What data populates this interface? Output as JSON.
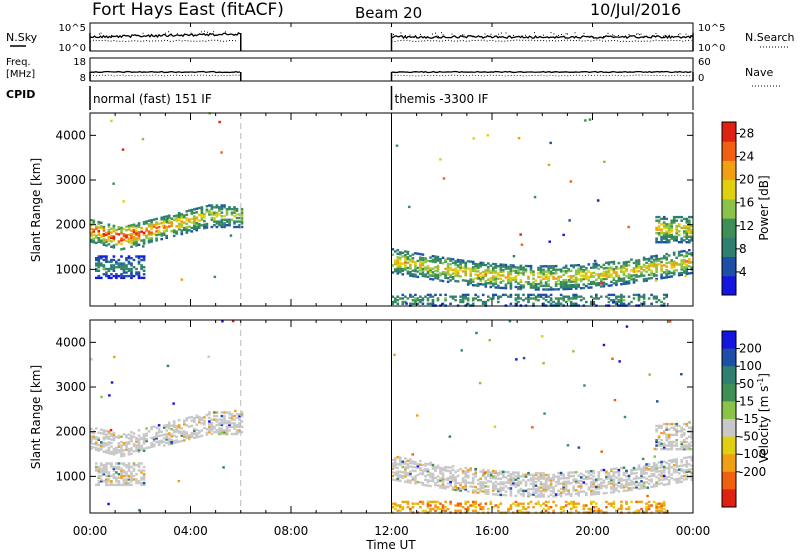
{
  "header": {
    "title": "Fort Hays East (fitACF)",
    "beam": "Beam 20",
    "date": "10/Jul/2016"
  },
  "top_panels": {
    "nsky_label": "N.Sky",
    "nsky_ticks": [
      "10^5",
      "10^0"
    ],
    "nsearch_label": "N.Search",
    "nsearch_ticks": [
      "10^5",
      "10^0"
    ],
    "freq_label_1": "Freq.",
    "freq_label_2": "[MHz]",
    "freq_ticks": [
      "18",
      "8"
    ],
    "nave_label": "Nave",
    "nave_ticks": [
      "60",
      "0"
    ],
    "cpid_label": "CPID",
    "cpid_segments": [
      {
        "start_hour": 0,
        "end_hour": 6,
        "label": "normal (fast) 151 IF"
      },
      {
        "start_hour": 12,
        "end_hour": 24,
        "label": "themis -3300 IF"
      }
    ]
  },
  "colors": {
    "power_scale": [
      "#1515e0",
      "#1d4fa8",
      "#2e7f70",
      "#3e8f55",
      "#8bc34a",
      "#e0d010",
      "#f0a010",
      "#f06010",
      "#e02010"
    ],
    "velocity_scale": [
      "#1515e0",
      "#1d4fa8",
      "#2e7f70",
      "#3e8f55",
      "#8bc34a",
      "#c8c8c8",
      "#e0d010",
      "#f0a010",
      "#f06010",
      "#e02010"
    ],
    "ground_scatter": "#c8c8c8"
  },
  "chart_data": [
    {
      "type": "heatmap",
      "title": "Power",
      "xlabel": "Time UT",
      "ylabel": "Slant Range [km]",
      "xlim_hours": [
        0,
        24
      ],
      "ylim": [
        180,
        4500
      ],
      "x_tick_labels": [
        "00:00",
        "04:00",
        "08:00",
        "12:00",
        "16:00",
        "20:00",
        "00:00"
      ],
      "y_ticks": [
        1000,
        2000,
        3000,
        4000
      ],
      "colorbar": {
        "label": "Power [dB]",
        "range": [
          0,
          30
        ],
        "ticks": [
          4,
          8,
          12,
          16,
          20,
          24,
          28
        ]
      },
      "data_gaps_hours": [
        [
          6,
          12
        ]
      ],
      "scatter_regions": [
        {
          "t_start": 0.0,
          "t_end": 6.0,
          "range_low": 1550,
          "range_high": 2400,
          "peak_db": 28,
          "note": "strong echo band, peak near 01:00 ~1700 km"
        },
        {
          "t_start": 0.2,
          "t_end": 2.2,
          "range_low": 800,
          "range_high": 1300,
          "peak_db": 10
        },
        {
          "t_start": 12.0,
          "t_end": 24.0,
          "range_low": 600,
          "range_high": 1500,
          "peak_db": 22
        },
        {
          "t_start": 12.0,
          "t_end": 23.0,
          "range_low": 180,
          "range_high": 450,
          "peak_db": 14
        },
        {
          "t_start": 22.5,
          "t_end": 24.0,
          "range_low": 1600,
          "range_high": 2200,
          "peak_db": 22
        }
      ]
    },
    {
      "type": "heatmap",
      "title": "Velocity",
      "xlabel": "Time UT",
      "ylabel": "Slant Range [km]",
      "xlim_hours": [
        0,
        24
      ],
      "ylim": [
        180,
        4500
      ],
      "x_tick_labels": [
        "00:00",
        "04:00",
        "08:00",
        "12:00",
        "16:00",
        "20:00",
        "00:00"
      ],
      "y_ticks": [
        1000,
        2000,
        3000,
        4000
      ],
      "colorbar": {
        "label": "Velocity [m s-1]",
        "levels": [
          -250,
          -200,
          -100,
          -50,
          -15,
          15,
          50,
          100,
          200,
          250
        ],
        "tick_labels": [
          "200",
          "100",
          "50",
          "15",
          "-15",
          "-50",
          "-100",
          "-200"
        ]
      },
      "data_gaps_hours": [
        [
          6,
          12
        ]
      ],
      "scatter_regions": [
        {
          "t_start": 0.0,
          "t_end": 6.0,
          "range_low": 1550,
          "range_high": 2400,
          "dominant": "ground scatter"
        },
        {
          "t_start": 0.2,
          "t_end": 2.2,
          "range_low": 800,
          "range_high": 1300,
          "dominant": "ground scatter"
        },
        {
          "t_start": 12.0,
          "t_end": 24.0,
          "range_low": 600,
          "range_high": 1500,
          "dominant": "ground scatter"
        },
        {
          "t_start": 12.0,
          "t_end": 23.0,
          "range_low": 180,
          "range_high": 450,
          "dominant": "-15 to -100 m/s"
        }
      ]
    }
  ],
  "labels": {
    "time_axis_title": "Time UT",
    "power_axis_title": "Slant Range [km]",
    "velocity_axis_title": "Slant Range [km]",
    "power_cb_title": "Power [dB]",
    "velocity_cb_title": "Velocity [m s",
    "velocity_cb_sup": "-1",
    "velocity_cb_close": "]"
  }
}
